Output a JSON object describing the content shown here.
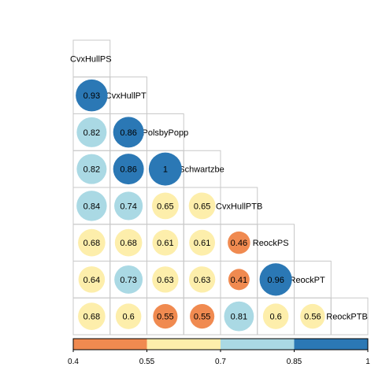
{
  "chart_data": {
    "type": "heatmap",
    "variables": [
      "CvxHullPS",
      "CvxHullPT",
      "PolsbyPopp",
      "Schwartzbe",
      "CvxHullPTB",
      "ReockPS",
      "ReockPT",
      "ReockPTB"
    ],
    "lower_triangle": [
      [],
      [
        "0.93"
      ],
      [
        "0.82",
        "0.86"
      ],
      [
        "0.82",
        "0.86",
        "1"
      ],
      [
        "0.84",
        "0.74",
        "0.65",
        "0.65"
      ],
      [
        "0.68",
        "0.68",
        "0.61",
        "0.61",
        "0.46"
      ],
      [
        "0.64",
        "0.73",
        "0.63",
        "0.63",
        "0.41",
        "0.96"
      ],
      [
        "0.68",
        "0.6",
        "0.55",
        "0.55",
        "0.81",
        "0.6",
        "0.56"
      ]
    ],
    "colorbar": {
      "breaks": [
        0.4,
        0.55,
        0.7,
        0.85,
        1
      ],
      "tick_labels": [
        "0.4",
        "0.55",
        "0.7",
        "0.85",
        "1"
      ],
      "colors": [
        "#f08a50",
        "#fdeeab",
        "#aad9e4",
        "#2b78b5"
      ]
    },
    "circle_size_encodes_value": true,
    "grid": true
  }
}
